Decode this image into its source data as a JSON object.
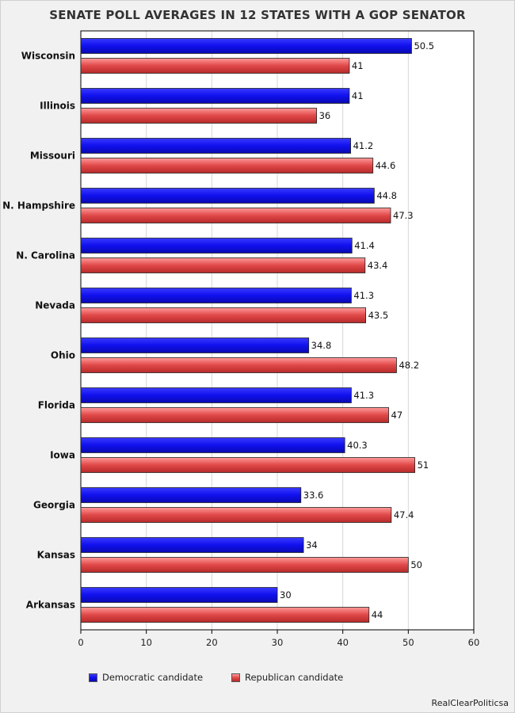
{
  "title": "SENATE POLL AVERAGES IN 12 STATES WITH A GOP SENATOR",
  "credit": "RealClearPoliticsa",
  "colors": {
    "democratic": "#1010ee",
    "republican": "#e04848",
    "grid": "#d6d6d6",
    "plot_bg": "#ffffff"
  },
  "chart_data": {
    "type": "bar",
    "orientation": "horizontal",
    "title": "SENATE POLL AVERAGES IN 12 STATES WITH A GOP SENATOR",
    "categories": [
      "Wisconsin",
      "Illinois",
      "Missouri",
      "N. Hampshire",
      "N. Carolina",
      "Nevada",
      "Ohio",
      "Florida",
      "Iowa",
      "Georgia",
      "Kansas",
      "Arkansas"
    ],
    "series": [
      {
        "name": "Democratic candidate",
        "values": [
          50.5,
          41,
          41.2,
          44.8,
          41.4,
          41.3,
          34.8,
          41.3,
          40.3,
          33.6,
          34,
          30
        ],
        "labels": [
          "50.5",
          "41",
          "41.2",
          "44.8",
          "41.4",
          "41.3",
          "34.8",
          "41.3",
          "40.3",
          "33.6",
          "34",
          "30"
        ]
      },
      {
        "name": "Republican candidate",
        "values": [
          41,
          36,
          44.6,
          47.3,
          43.4,
          43.5,
          48.2,
          47,
          51,
          47.4,
          50,
          44
        ],
        "labels": [
          "41",
          "36",
          "44.6",
          "47.3",
          "43.4",
          "43.5",
          "48.2",
          "47",
          "51",
          "47.4",
          "50",
          "44"
        ]
      }
    ],
    "xlim": [
      0,
      60
    ],
    "xticks": [
      "0",
      "10",
      "20",
      "30",
      "40",
      "50",
      "60"
    ],
    "grid": true,
    "legend_position": "bottom"
  }
}
